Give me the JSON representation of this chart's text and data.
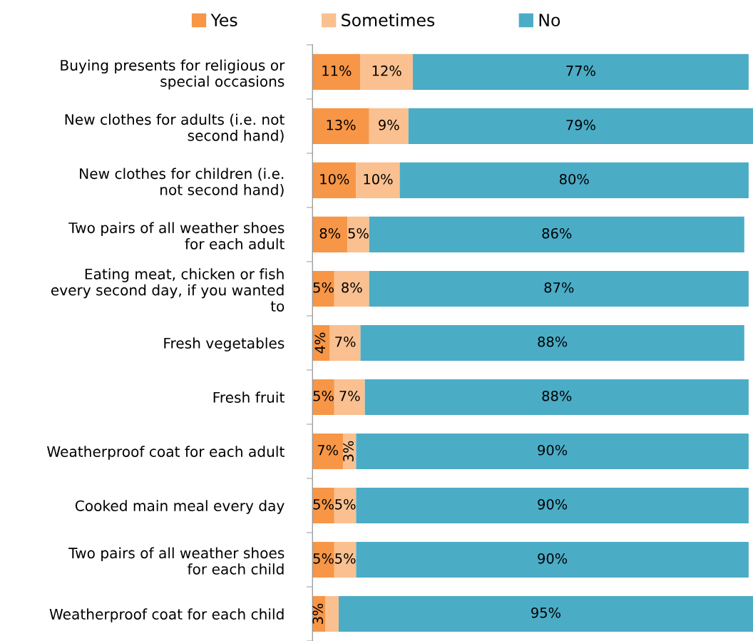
{
  "chart_data": {
    "type": "bar",
    "orientation": "horizontal",
    "stacked": true,
    "legend": "top",
    "grid": false,
    "tick_labels": "y",
    "xlim": [
      0,
      101
    ],
    "categories": [
      "Buying presents for religious or special occasions",
      "New clothes for adults (i.e. not second hand)",
      "New clothes for children (i.e. not second hand)",
      "Two pairs of all weather shoes for each adult",
      "Eating meat, chicken or fish every second day, if you wanted to",
      "Fresh vegetables",
      "Fresh fruit",
      "Weatherproof coat for each adult",
      "Cooked main meal every day",
      "Two pairs of all weather shoes for each child",
      "Weatherproof coat for each child"
    ],
    "series": [
      {
        "name": "Yes",
        "color": "#f79646",
        "values": [
          11,
          13,
          10,
          8,
          5,
          4,
          5,
          7,
          5,
          5,
          3
        ],
        "value_labels": [
          "11%",
          "13%",
          "10%",
          "8%",
          "5%",
          "4%",
          "5%",
          "7%",
          "5%",
          "5%",
          "3%"
        ]
      },
      {
        "name": "Sometimes",
        "color": "#fac090",
        "values": [
          12,
          9,
          10,
          5,
          8,
          7,
          7,
          3,
          5,
          5,
          3
        ],
        "value_labels": [
          "12%",
          "9%",
          "10%",
          "5%",
          "8%",
          "7%",
          "7%",
          "3%",
          "5%",
          "5%",
          null
        ]
      },
      {
        "name": "No",
        "color": "#4bacc6",
        "values": [
          77,
          79,
          80,
          86,
          87,
          88,
          88,
          90,
          90,
          90,
          95
        ],
        "value_labels": [
          "77%",
          "79%",
          "80%",
          "86%",
          "87%",
          "88%",
          "88%",
          "90%",
          "90%",
          "90%",
          "95%"
        ]
      }
    ]
  }
}
